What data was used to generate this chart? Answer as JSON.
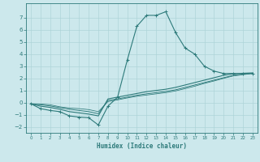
{
  "xlabel": "Humidex (Indice chaleur)",
  "bg_color": "#cce8ec",
  "line_color": "#2d7a7a",
  "grid_color": "#aed4d8",
  "xlim": [
    -0.5,
    23.5
  ],
  "ylim": [
    -2.5,
    8.2
  ],
  "xticks": [
    0,
    1,
    2,
    3,
    4,
    5,
    6,
    7,
    8,
    9,
    10,
    11,
    12,
    13,
    14,
    15,
    16,
    17,
    18,
    19,
    20,
    21,
    22,
    23
  ],
  "yticks": [
    -2,
    -1,
    0,
    1,
    2,
    3,
    4,
    5,
    6,
    7
  ],
  "curve1_x": [
    0,
    1,
    2,
    3,
    4,
    5,
    6,
    7,
    8,
    9,
    10,
    11,
    12,
    13,
    14,
    15,
    16,
    17,
    18,
    19,
    20,
    21,
    22,
    23
  ],
  "curve1_y": [
    -0.1,
    -0.5,
    -0.65,
    -0.75,
    -1.1,
    -1.2,
    -1.25,
    -1.85,
    -0.3,
    0.45,
    3.5,
    6.3,
    7.2,
    7.2,
    7.5,
    5.8,
    4.5,
    4.0,
    3.0,
    2.6,
    2.4,
    2.4,
    2.4,
    2.4
  ],
  "curve2_x": [
    0,
    1,
    2,
    3,
    4,
    5,
    6,
    7,
    8,
    9,
    10,
    11,
    12,
    13,
    14,
    15,
    16,
    17,
    18,
    19,
    20,
    21,
    22,
    23
  ],
  "curve2_y": [
    -0.1,
    -0.3,
    -0.4,
    -0.55,
    -0.75,
    -0.85,
    -0.95,
    -1.1,
    0.3,
    0.45,
    0.6,
    0.75,
    0.9,
    1.0,
    1.1,
    1.25,
    1.45,
    1.65,
    1.85,
    2.05,
    2.25,
    2.38,
    2.42,
    2.45
  ],
  "curve3_x": [
    0,
    1,
    2,
    3,
    4,
    5,
    6,
    7,
    8,
    9,
    10,
    11,
    12,
    13,
    14,
    15,
    16,
    17,
    18,
    19,
    20,
    21,
    22,
    23
  ],
  "curve3_y": [
    -0.1,
    -0.18,
    -0.28,
    -0.42,
    -0.55,
    -0.65,
    -0.75,
    -0.92,
    0.18,
    0.3,
    0.45,
    0.6,
    0.72,
    0.82,
    0.92,
    1.05,
    1.25,
    1.45,
    1.65,
    1.85,
    2.05,
    2.25,
    2.35,
    2.42
  ],
  "curve4_x": [
    0,
    1,
    2,
    3,
    4,
    5,
    6,
    7,
    8,
    9,
    10,
    11,
    12,
    13,
    14,
    15,
    16,
    17,
    18,
    19,
    20,
    21,
    22,
    23
  ],
  "curve4_y": [
    -0.1,
    -0.12,
    -0.18,
    -0.35,
    -0.45,
    -0.5,
    -0.58,
    -0.75,
    0.08,
    0.22,
    0.38,
    0.52,
    0.62,
    0.72,
    0.82,
    0.96,
    1.15,
    1.35,
    1.58,
    1.78,
    2.0,
    2.2,
    2.3,
    2.4
  ]
}
